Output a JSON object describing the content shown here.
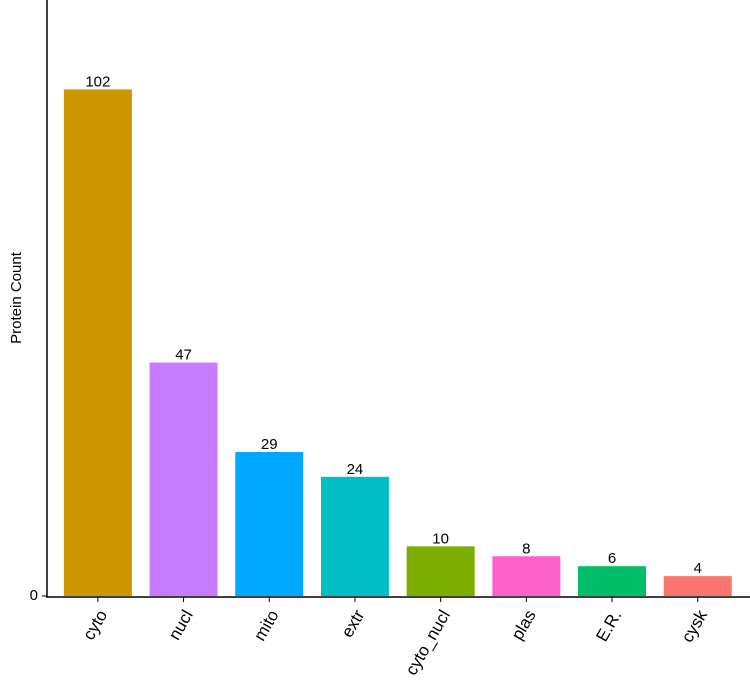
{
  "chart_data": {
    "type": "bar",
    "y_label": "Protein Count",
    "categories": [
      "cyto",
      "nucl",
      "mito",
      "extr",
      "cyto_nucl",
      "plas",
      "E.R.",
      "cysk"
    ],
    "values": [
      102,
      47,
      29,
      24,
      10,
      8,
      6,
      4
    ],
    "colors": [
      "#cd9600",
      "#c77cff",
      "#00a9ff",
      "#00bfc4",
      "#7cae00",
      "#ff61cc",
      "#00be67",
      "#f8766d"
    ],
    "ylim": [
      0,
      120
    ],
    "yticks": [
      0
    ],
    "grid": false
  }
}
